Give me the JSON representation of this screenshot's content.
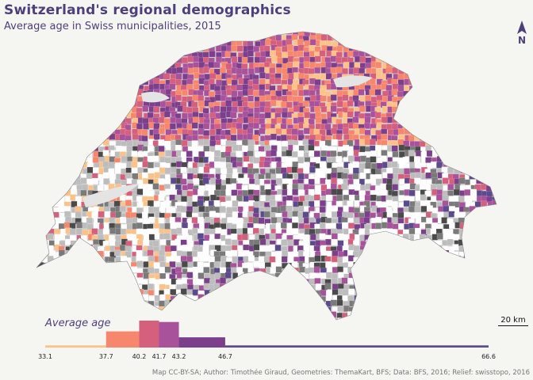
{
  "title": "Switzerland's regional demographics",
  "subtitle": "Average age in Swiss municipalities, 2015",
  "north_label": "N",
  "scale_label": "20 km",
  "legend": {
    "title": "Average age",
    "breaks": [
      "33.1",
      "37.7",
      "40.2",
      "41.7",
      "43.2",
      "46.7",
      "66.6"
    ],
    "break_values": [
      33.1,
      37.7,
      40.2,
      41.7,
      43.2,
      46.7,
      66.6
    ],
    "bar_heights": [
      0.08,
      0.6,
      1.0,
      0.95,
      0.38,
      0.08
    ],
    "colors": [
      "#fdc287",
      "#f6876d",
      "#d5607d",
      "#a8529c",
      "#7b3f8c",
      "#5b4a8c"
    ]
  },
  "caption": "Map CC-BY-SA; Author: Timothée Giraud, Geometries: ThemaKart, BFS; Data: BFS, 2016; Relief: swisstopo, 2016",
  "colors": {
    "background": "#f5f5f2",
    "text": "#4e3f7a",
    "lakes": "#e4e4e4",
    "relief_light": "#ffffff",
    "relief_dark": "#4a4a4a"
  }
}
